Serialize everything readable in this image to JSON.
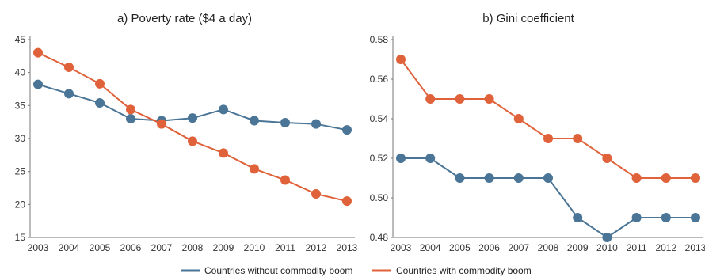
{
  "colors": {
    "without": "#4a7596",
    "with": "#e0623a"
  },
  "legend": [
    {
      "label": "Countries without commodity boom",
      "color": "#4a7596"
    },
    {
      "label": "Countries with commodity boom",
      "color": "#e0623a"
    }
  ],
  "chart_data": [
    {
      "type": "line",
      "title": "a) Poverty rate ($4 a day)",
      "categories": [
        "2003",
        "2004",
        "2005",
        "2006",
        "2007",
        "2008",
        "2009",
        "2010",
        "2011",
        "2012",
        "2013"
      ],
      "y_ticks": [
        "15",
        "20",
        "25",
        "30",
        "35",
        "40",
        "45"
      ],
      "ylim": [
        15,
        45
      ],
      "series": [
        {
          "name": "Countries without commodity boom",
          "values": [
            38.2,
            36.8,
            35.4,
            33.0,
            32.7,
            33.1,
            34.4,
            32.7,
            32.4,
            32.2,
            31.3
          ]
        },
        {
          "name": "Countries with commodity boom",
          "values": [
            43.0,
            40.8,
            38.3,
            34.4,
            32.2,
            29.6,
            27.8,
            25.4,
            23.7,
            21.6,
            20.5
          ]
        }
      ]
    },
    {
      "type": "line",
      "title": "b) Gini coefficient",
      "categories": [
        "2003",
        "2004",
        "2005",
        "2006",
        "2007",
        "2008",
        "2009",
        "2010",
        "2011",
        "2012",
        "2013"
      ],
      "y_ticks": [
        "0.48",
        "0.50",
        "0.52",
        "0.54",
        "0.56",
        "0.58"
      ],
      "ylim": [
        0.48,
        0.58
      ],
      "series": [
        {
          "name": "Countries without commodity boom",
          "values": [
            0.52,
            0.52,
            0.51,
            0.51,
            0.51,
            0.51,
            0.49,
            0.48,
            0.49,
            0.49,
            0.49
          ]
        },
        {
          "name": "Countries with commodity boom",
          "values": [
            0.57,
            0.55,
            0.55,
            0.55,
            0.54,
            0.53,
            0.53,
            0.52,
            0.51,
            0.51,
            0.51
          ]
        }
      ]
    }
  ]
}
